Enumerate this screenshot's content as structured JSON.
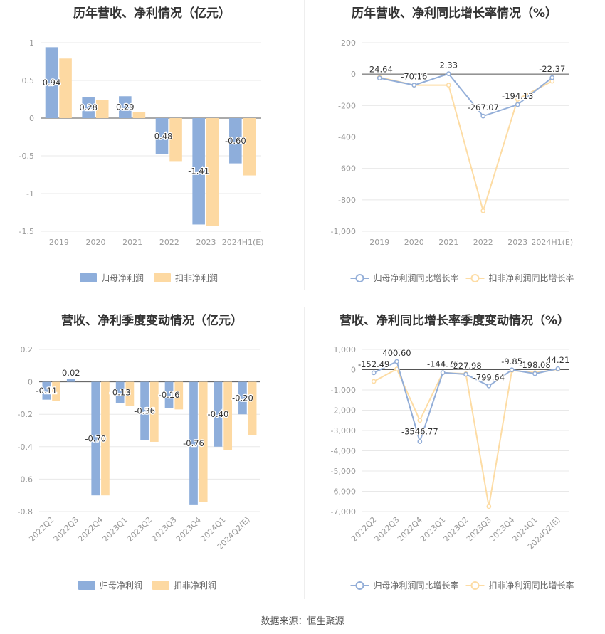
{
  "source": "数据来源：恒生聚源",
  "colors": {
    "blue": "#8eaedb",
    "orange": "#fdd9a2",
    "blue_line": "#93aed8",
    "orange_line": "#fddca4",
    "grid": "#e8e8e8",
    "axis": "#999999"
  },
  "chart_data": [
    {
      "type": "bar",
      "title": "历年营收、净利情况（亿元）",
      "categories": [
        "2019",
        "2020",
        "2021",
        "2022",
        "2023",
        "2024H1(E)"
      ],
      "ylim": [
        -1.5,
        1
      ],
      "yticks": [
        "1",
        "0.5",
        "0",
        "-0.5",
        "-1",
        "-1.5"
      ],
      "ytick_values": [
        1,
        0.5,
        0,
        -0.5,
        -1,
        -1.5
      ],
      "series": [
        {
          "name": "归母净利润",
          "values": [
            0.94,
            0.28,
            0.29,
            -0.48,
            -1.41,
            -0.6
          ],
          "labels": [
            "0.94",
            "0.28",
            "0.29",
            "-0.48",
            "-1.41",
            "-0.60"
          ]
        },
        {
          "name": "扣非净利润",
          "values": [
            0.79,
            0.24,
            0.08,
            -0.57,
            -1.43,
            -0.76
          ]
        }
      ]
    },
    {
      "type": "line",
      "title": "历年营收、净利同比增长率情况（%）",
      "categories": [
        "2019",
        "2020",
        "2021",
        "2022",
        "2023",
        "2024H1(E)"
      ],
      "ylim": [
        -1000,
        200
      ],
      "yticks": [
        "200",
        "0",
        "-200",
        "-400",
        "-600",
        "-800",
        "-1,000"
      ],
      "ytick_values": [
        200,
        0,
        -200,
        -400,
        -600,
        -800,
        -1000
      ],
      "series": [
        {
          "name": "归母净利润同比增长率",
          "values": [
            -24.64,
            -70.16,
            2.33,
            -267.07,
            -194.13,
            -22.37
          ],
          "labels": [
            "-24.64",
            "-70.16",
            "2.33",
            "-267.07",
            "-194.13",
            "-22.37"
          ]
        },
        {
          "name": "扣非净利润同比增长率",
          "values": [
            -20,
            -70,
            -70,
            -870,
            -160,
            -45
          ]
        }
      ]
    },
    {
      "type": "bar",
      "title": "营收、净利季度变动情况（亿元）",
      "categories": [
        "2022Q2",
        "2022Q3",
        "2022Q4",
        "2023Q1",
        "2023Q2",
        "2023Q3",
        "2023Q4",
        "2024Q1",
        "2024Q2(E)"
      ],
      "ylim": [
        -0.8,
        0.2
      ],
      "yticks": [
        "0.2",
        "0",
        "-0.2",
        "-0.4",
        "-0.6",
        "-0.8"
      ],
      "ytick_values": [
        0.2,
        0,
        -0.2,
        -0.4,
        -0.6,
        -0.8
      ],
      "series": [
        {
          "name": "归母净利润",
          "values": [
            -0.11,
            0.02,
            -0.7,
            -0.13,
            -0.36,
            -0.16,
            -0.76,
            -0.4,
            -0.2
          ],
          "labels": [
            "-0.11",
            "0.02",
            "-0.70",
            "-0.13",
            "-0.36",
            "-0.16",
            "-0.76",
            "-0.40",
            "-0.20"
          ]
        },
        {
          "name": "扣非净利润",
          "values": [
            -0.12,
            0.0,
            -0.7,
            -0.15,
            -0.37,
            -0.17,
            -0.74,
            -0.42,
            -0.33
          ]
        }
      ]
    },
    {
      "type": "line",
      "title": "营收、净利同比增长率季度变动情况（%）",
      "categories": [
        "2022Q2",
        "2022Q3",
        "2022Q4",
        "2023Q1",
        "2023Q2",
        "2023Q3",
        "2023Q4",
        "2024Q1",
        "2024Q2(E)"
      ],
      "ylim": [
        -7000,
        1000
      ],
      "yticks": [
        "1,000",
        "0",
        "-1,000",
        "-2,000",
        "-3,000",
        "-4,000",
        "-5,000",
        "-6,000",
        "-7,000"
      ],
      "ytick_values": [
        1000,
        0,
        -1000,
        -2000,
        -3000,
        -4000,
        -5000,
        -6000,
        -7000
      ],
      "series": [
        {
          "name": "归母净利润同比增长率",
          "values": [
            -152.49,
            400.6,
            -3546.77,
            -144.76,
            -227.98,
            -799.64,
            -9.85,
            -198.08,
            44.21
          ],
          "labels": [
            "-152.49",
            "400.60",
            "-3546.77",
            "-144.76",
            "-227.98",
            "-799.64",
            "-9.85",
            "-198.08",
            "44.21"
          ]
        },
        {
          "name": "扣非净利润同比增长率",
          "values": [
            -580,
            30,
            -2500,
            -150,
            -200,
            -6750,
            -40,
            -150,
            20
          ]
        }
      ]
    }
  ]
}
